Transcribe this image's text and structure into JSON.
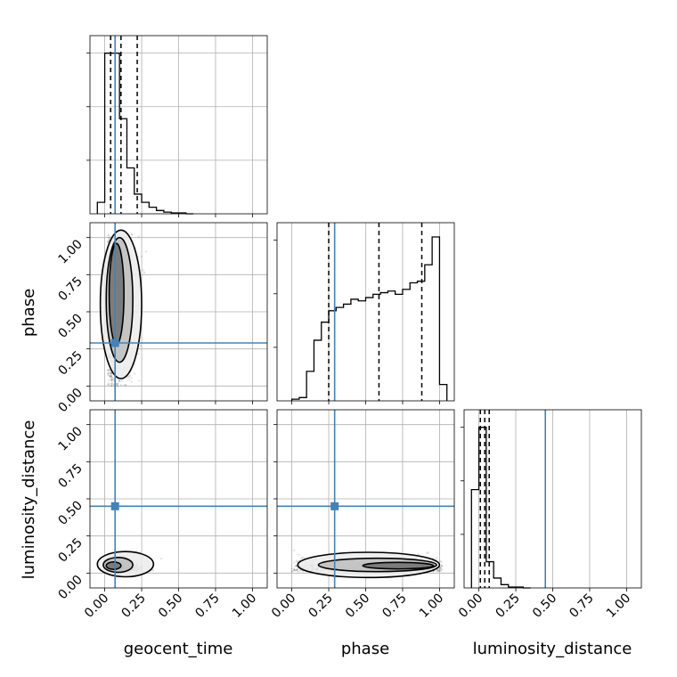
{
  "chart_data": {
    "type": "corner",
    "parameters": [
      "geocent_time",
      "phase",
      "luminosity_distance"
    ],
    "axis_range": [
      -0.1,
      1.1
    ],
    "tick_values": [
      0.0,
      0.25,
      0.5,
      0.75,
      1.0
    ],
    "tick_labels": [
      "0.00",
      "0.25",
      "0.50",
      "0.75",
      "1.00"
    ],
    "truths": [
      0.07,
      0.29,
      0.45
    ],
    "truth_color": "#4682b4",
    "grid": true,
    "histograms": [
      {
        "parameter": "geocent_time",
        "bin_edges": [
          -0.05,
          0.0,
          0.05,
          0.1,
          0.15,
          0.2,
          0.25,
          0.3,
          0.35,
          0.4,
          0.45,
          0.5,
          0.55,
          0.6
        ],
        "counts": [
          0.07,
          0.98,
          0.98,
          0.58,
          0.28,
          0.12,
          0.07,
          0.04,
          0.02,
          0.01,
          0.005,
          0.005,
          0.0
        ],
        "quantiles": [
          0.04,
          0.11,
          0.22
        ]
      },
      {
        "parameter": "phase",
        "bin_edges": [
          0.0,
          0.05,
          0.1,
          0.15,
          0.2,
          0.25,
          0.3,
          0.35,
          0.4,
          0.45,
          0.5,
          0.55,
          0.6,
          0.65,
          0.7,
          0.75,
          0.8,
          0.85,
          0.9,
          0.95,
          1.0,
          1.05
        ],
        "counts": [
          0.01,
          0.02,
          0.18,
          0.37,
          0.48,
          0.55,
          0.57,
          0.59,
          0.62,
          0.61,
          0.63,
          0.65,
          0.66,
          0.67,
          0.65,
          0.68,
          0.72,
          0.73,
          0.83,
          1.0,
          0.1
        ],
        "quantiles": [
          0.25,
          0.59,
          0.88
        ]
      },
      {
        "parameter": "luminosity_distance",
        "bin_edges": [
          -0.05,
          0.0,
          0.05,
          0.1,
          0.15,
          0.2,
          0.25,
          0.3,
          0.35
        ],
        "counts": [
          0.6,
          0.98,
          0.16,
          0.06,
          0.02,
          0.005,
          0.005,
          0.0
        ],
        "quantiles": [
          0.01,
          0.04,
          0.07
        ]
      }
    ],
    "scatter_panels": [
      {
        "x": "geocent_time",
        "y": "phase",
        "density_center": [
          0.07,
          0.55
        ],
        "spread": [
          0.09,
          0.3
        ],
        "contours": [
          {
            "cx": 0.11,
            "cy": 0.55,
            "rx": 0.14,
            "ry": 0.5
          },
          {
            "cx": 0.1,
            "cy": 0.58,
            "rx": 0.09,
            "ry": 0.42
          },
          {
            "cx": 0.08,
            "cy": 0.62,
            "rx": 0.05,
            "ry": 0.34
          }
        ]
      },
      {
        "x": "geocent_time",
        "y": "luminosity_distance",
        "density_center": [
          0.08,
          0.05
        ],
        "spread": [
          0.1,
          0.04
        ],
        "contours": [
          {
            "cx": 0.14,
            "cy": 0.06,
            "rx": 0.19,
            "ry": 0.085
          },
          {
            "cx": 0.09,
            "cy": 0.055,
            "rx": 0.1,
            "ry": 0.05
          },
          {
            "cx": 0.06,
            "cy": 0.05,
            "rx": 0.05,
            "ry": 0.025
          }
        ]
      },
      {
        "x": "phase",
        "y": "luminosity_distance",
        "density_center": [
          0.55,
          0.05
        ],
        "spread": [
          0.3,
          0.04
        ],
        "contours": [
          {
            "cx": 0.52,
            "cy": 0.055,
            "rx": 0.48,
            "ry": 0.085
          },
          {
            "cx": 0.58,
            "cy": 0.055,
            "rx": 0.4,
            "ry": 0.045
          },
          {
            "cx": 0.72,
            "cy": 0.05,
            "rx": 0.24,
            "ry": 0.022
          }
        ]
      }
    ]
  }
}
